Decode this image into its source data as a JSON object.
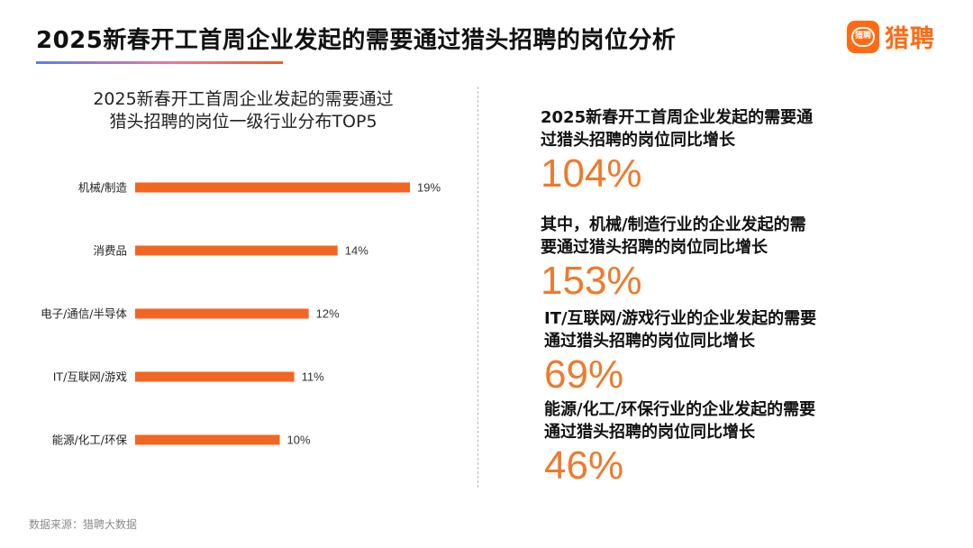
{
  "header": {
    "title": "2025新春开工首周企业发起的需要通过猎头招聘的岗位分析",
    "logo_icon_text": "猎聘",
    "logo_text": "猎聘",
    "accent_color": "#ff6a13"
  },
  "chart_title": {
    "line1": "2025新春开工首周企业发起的需要通过",
    "line2": "猎头招聘的岗位一级行业分布TOP5"
  },
  "chart_data": {
    "type": "bar",
    "orientation": "horizontal",
    "title": "2025新春开工首周企业发起的需要通过猎头招聘的岗位一级行业分布TOP5",
    "categories": [
      "机械/制造",
      "消费品",
      "电子/通信/半导体",
      "IT/互联网/游戏",
      "能源/化工/环保"
    ],
    "values": [
      19,
      14,
      12,
      11,
      10
    ],
    "value_labels": [
      "19%",
      "14%",
      "12%",
      "11%",
      "10%"
    ],
    "unit": "%",
    "xlim": [
      0,
      19
    ],
    "bar_color": "#f26522",
    "grid": false,
    "legend": "none"
  },
  "stats": [
    {
      "label_line1": "2025新春开工首周企业发起的需要通",
      "label_line2": "过猎头招聘的岗位同比增长",
      "value": "104%"
    },
    {
      "label_line1": "其中，机械/制造行业的企业发起的需",
      "label_line2": "要通过猎头招聘的岗位同比增长",
      "value": "153%"
    },
    {
      "label_line1": "IT/互联网/游戏行业的企业发起的需要",
      "label_line2": "通过猎头招聘的岗位同比增长",
      "value": "69%"
    },
    {
      "label_line1": "能源/化工/环保行业的企业发起的需要",
      "label_line2": "通过猎头招聘的岗位同比增长",
      "value": "46%"
    }
  ],
  "source": "数据来源：猎聘大数据"
}
